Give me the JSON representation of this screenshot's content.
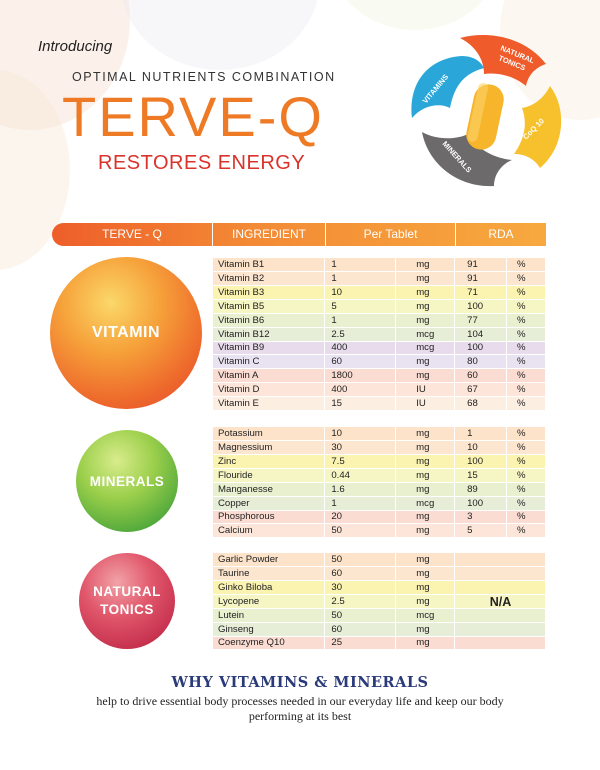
{
  "header": {
    "intro": "Introducing",
    "subtitle": "OPTIMAL NUTRIENTS COMBINATION",
    "brand": "TERVE-Q",
    "tagline": "RESTORES ENERGY"
  },
  "logo": {
    "segments": [
      "VITAMINS",
      "NATURAL TONICS",
      "CoQ 10",
      "MINERALS"
    ],
    "colors": {
      "vitamins": "#2aa6d8",
      "natural_tonics": "#ef5b2a",
      "coq10": "#f6c12c",
      "minerals": "#6c6a6b",
      "capsule": "#f7b52b"
    }
  },
  "table": {
    "headers": [
      "TERVE - Q",
      "INGREDIENT",
      "Per Tablet",
      "RDA"
    ],
    "groups": [
      {
        "label": "VITAMIN",
        "label_lines": [
          "VITAMIN"
        ],
        "rows": [
          [
            "Vitamin B1",
            "1",
            "mg",
            "91",
            "%"
          ],
          [
            "Vitamin B2",
            "1",
            "mg",
            "91",
            "%"
          ],
          [
            "Vitamin B3",
            "10",
            "mg",
            "71",
            "%"
          ],
          [
            "Vitamin B5",
            "5",
            "mg",
            "100",
            "%"
          ],
          [
            "Vitamin B6",
            "1",
            "mg",
            "77",
            "%"
          ],
          [
            "Vitamin B12",
            "2.5",
            "mcg",
            "104",
            "%"
          ],
          [
            "Vitamin B9",
            "400",
            "mcg",
            "100",
            "%"
          ],
          [
            "Vitamin C",
            "60",
            "mg",
            "80",
            "%"
          ],
          [
            "Vitamin A",
            "1800",
            "mg",
            "60",
            "%"
          ],
          [
            "Vitamin D",
            "400",
            "IU",
            "67",
            "%"
          ],
          [
            "Vitamin E",
            "15",
            "IU",
            "68",
            "%"
          ]
        ]
      },
      {
        "label": "MINERALS",
        "label_lines": [
          "MINERALS"
        ],
        "rows": [
          [
            "Potassium",
            "10",
            "mg",
            "1",
            "%"
          ],
          [
            "Magnessium",
            "30",
            "mg",
            "10",
            "%"
          ],
          [
            "Zinc",
            "7.5",
            "mg",
            "100",
            "%"
          ],
          [
            "Flouride",
            "0.44",
            "mg",
            "15",
            "%"
          ],
          [
            "Manganesse",
            "1.6",
            "mg",
            "89",
            "%"
          ],
          [
            "Copper",
            "1",
            "mcg",
            "100",
            "%"
          ],
          [
            "Phosphorous",
            "20",
            "mg",
            "3",
            "%"
          ],
          [
            "Calcium",
            "50",
            "mg",
            "5",
            "%"
          ]
        ]
      },
      {
        "label": "NATURAL TONICS",
        "label_lines": [
          "NATURAL",
          "TONICS"
        ],
        "rows": [
          [
            "Garlic Powder",
            "50",
            "mg",
            "",
            ""
          ],
          [
            "Taurine",
            "60",
            "mg",
            "",
            ""
          ],
          [
            "Ginko Biloba",
            "30",
            "mg",
            "",
            ""
          ],
          [
            "Lycopene",
            "2.5",
            "mg",
            "",
            ""
          ],
          [
            "Lutein",
            "50",
            "mcg",
            "",
            ""
          ],
          [
            "Ginseng",
            "60",
            "mg",
            "",
            ""
          ],
          [
            "Coenzyme Q10",
            "25",
            "mg",
            "",
            ""
          ]
        ],
        "rda_note": "N/A"
      }
    ]
  },
  "row_colors": {
    "vitamin": [
      "#fde3c9",
      "#fde6cf",
      "#fbf3b0",
      "#f6f5c4",
      "#e8f0cf",
      "#e6eed8",
      "#e8dcec",
      "#e9e3f1",
      "#fbdcd2",
      "#fde6d9",
      "#fdeee2"
    ],
    "minerals": [
      "#fde3c9",
      "#fde6cf",
      "#fbf3b0",
      "#f6f5c4",
      "#e8f0cf",
      "#e6eed8",
      "#fbdcd2",
      "#fde6d9"
    ],
    "tonics": [
      "#fde3c9",
      "#fde6cf",
      "#fbf3b0",
      "#f6f5c4",
      "#e8f0cf",
      "#e6eed8",
      "#fbdcd2"
    ]
  },
  "footer": {
    "heading": "WHY  VITAMINS & MINERALS",
    "text": "help to drive essential body processes needed in our everyday life and keep our body performing at its best"
  }
}
